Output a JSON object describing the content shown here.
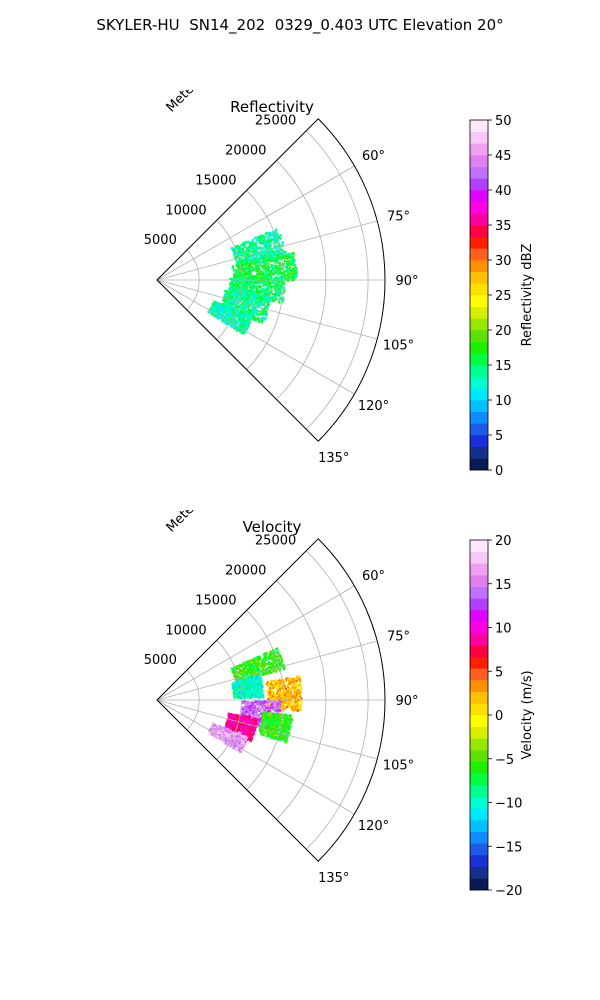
{
  "figure": {
    "title": "SKYLER-HU  SN14_202  0329_0.403 UTC Elevation 20°"
  },
  "chart_data": [
    {
      "type": "polar-sector-heatmap",
      "title": "Reflectivity",
      "radial_label": "Meters",
      "radial_ticks": [
        5000,
        10000,
        15000,
        20000,
        25000
      ],
      "radial_tick_labels": [
        "5000",
        "10000",
        "15000",
        "20000",
        "25000"
      ],
      "rlim": [
        0,
        27000
      ],
      "azimuth_range_deg": [
        45,
        135
      ],
      "azimuth_ticks": [
        60,
        75,
        90,
        105,
        120,
        135
      ],
      "azimuth_tick_labels": [
        "60°",
        "75°",
        "90°",
        "105°",
        "120°",
        "135°"
      ],
      "grid": true,
      "colorbar": {
        "label": "Reflectivity dBZ",
        "min": 0,
        "max": 50,
        "ticks": [
          0,
          5,
          10,
          15,
          20,
          25,
          30,
          35,
          40,
          45,
          50
        ],
        "tick_labels": [
          "0",
          "5",
          "10",
          "15",
          "20",
          "25",
          "30",
          "35",
          "40",
          "45",
          "50"
        ],
        "colors": [
          "#0a1a55",
          "#15308a",
          "#1b2fd8",
          "#1c5ce8",
          "#0f8cff",
          "#00c0ff",
          "#00e8ff",
          "#00ffd0",
          "#00ff90",
          "#00ff40",
          "#1cf000",
          "#5ee000",
          "#96e800",
          "#d6f000",
          "#ffff00",
          "#ffe000",
          "#ffc000",
          "#ff9000",
          "#ff6020",
          "#ff2000",
          "#ff0040",
          "#ff00a0",
          "#ff00e0",
          "#e000ff",
          "#b040ff",
          "#c070ff",
          "#e080f0",
          "#f0a0f0",
          "#f8c8f8",
          "#fde8fd"
        ]
      },
      "echo_regions": [
        {
          "az_range_deg": [
            66,
            80
          ],
          "range_m": [
            9500,
            15500
          ],
          "value": 14
        },
        {
          "az_range_deg": [
            78,
            90
          ],
          "range_m": [
            9000,
            16500
          ],
          "value": 16
        },
        {
          "az_range_deg": [
            88,
            100
          ],
          "range_m": [
            8500,
            15000
          ],
          "value": 15
        },
        {
          "az_range_deg": [
            98,
            112
          ],
          "range_m": [
            8000,
            13500
          ],
          "value": 14
        },
        {
          "az_range_deg": [
            110,
            122
          ],
          "range_m": [
            7000,
            12000
          ],
          "value": 13
        }
      ]
    },
    {
      "type": "polar-sector-heatmap",
      "title": "Velocity",
      "radial_label": "Meters",
      "radial_ticks": [
        5000,
        10000,
        15000,
        20000,
        25000
      ],
      "radial_tick_labels": [
        "5000",
        "10000",
        "15000",
        "20000",
        "25000"
      ],
      "rlim": [
        0,
        27000
      ],
      "azimuth_range_deg": [
        45,
        135
      ],
      "azimuth_ticks": [
        60,
        75,
        90,
        105,
        120,
        135
      ],
      "azimuth_tick_labels": [
        "60°",
        "75°",
        "90°",
        "105°",
        "120°",
        "135°"
      ],
      "grid": true,
      "colorbar": {
        "label": "Velocity (m/s)",
        "min": -20,
        "max": 20,
        "ticks": [
          -20,
          -15,
          -10,
          -5,
          0,
          5,
          10,
          15,
          20
        ],
        "tick_labels": [
          "−20",
          "−15",
          "−10",
          "−5",
          "0",
          "5",
          "10",
          "15",
          "20"
        ],
        "colors": [
          "#0a1a55",
          "#15308a",
          "#1b2fd8",
          "#1c5ce8",
          "#0f8cff",
          "#00c0ff",
          "#00e8ff",
          "#00ffd0",
          "#00ff90",
          "#00ff40",
          "#1cf000",
          "#5ee000",
          "#96e800",
          "#d6f000",
          "#ffff00",
          "#ffe000",
          "#ffc000",
          "#ff9000",
          "#ff6020",
          "#ff2000",
          "#ff0040",
          "#ff00a0",
          "#ff00e0",
          "#e000ff",
          "#b040ff",
          "#c070ff",
          "#e080f0",
          "#f0a0f0",
          "#f8c8f8",
          "#fde8fd"
        ]
      },
      "echo_regions": [
        {
          "az_range_deg": [
            66,
            76
          ],
          "range_m": [
            9500,
            15500
          ],
          "value": -6
        },
        {
          "az_range_deg": [
            76,
            88
          ],
          "range_m": [
            9000,
            12500
          ],
          "value": -10
        },
        {
          "az_range_deg": [
            80,
            94
          ],
          "range_m": [
            13000,
            17000
          ],
          "value": 2
        },
        {
          "az_range_deg": [
            90,
            104
          ],
          "range_m": [
            10000,
            14500
          ],
          "value": 14
        },
        {
          "az_range_deg": [
            96,
            108
          ],
          "range_m": [
            12500,
            16000
          ],
          "value": -6
        },
        {
          "az_range_deg": [
            100,
            114
          ],
          "range_m": [
            8500,
            12000
          ],
          "value": 9
        },
        {
          "az_range_deg": [
            112,
            122
          ],
          "range_m": [
            7000,
            11500
          ],
          "value": 16
        }
      ]
    }
  ]
}
